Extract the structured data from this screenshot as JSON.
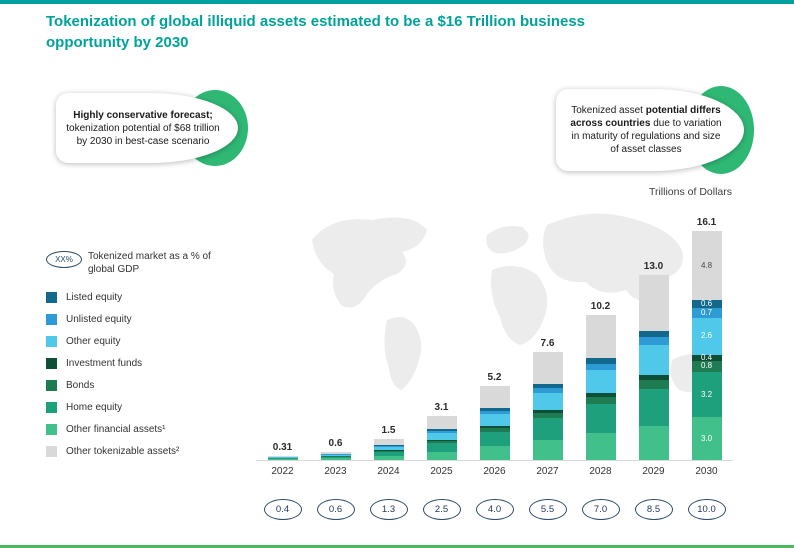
{
  "header": {
    "title": "Tokenization of global illiquid assets estimated to be a $16 Trillion business opportunity by 2030"
  },
  "callouts": {
    "left_bold": "Highly conservative forecast;",
    "left_rest": " tokenization potential of $68 trillion by 2030 in best-case scenario",
    "right_pre": "Tokenized asset ",
    "right_bold": "potential differs across countries",
    "right_post": " due to variation in maturity of regulations and size of asset classes"
  },
  "chart_data": {
    "type": "bar",
    "stacked": true,
    "title": "Trillions of Dollars",
    "categories": [
      "2022",
      "2023",
      "2024",
      "2025",
      "2026",
      "2027",
      "2028",
      "2029",
      "2030"
    ],
    "totals": [
      0.31,
      0.6,
      1.5,
      3.1,
      5.2,
      7.6,
      10.2,
      13.0,
      16.1
    ],
    "totals_labels": [
      "0.31",
      "0.6",
      "1.5",
      "3.1",
      "5.2",
      "7.6",
      "10.2",
      "13.0",
      "16.1"
    ],
    "gdp_badge": "XX%",
    "gdp_note": "Tokenized market as a % of global GDP",
    "gdp_percent_labels": [
      "0.4",
      "0.6",
      "1.3",
      "2.5",
      "4.0",
      "5.5",
      "7.0",
      "8.5",
      "10.0"
    ],
    "legend": [
      {
        "label": "Listed equity",
        "color": "#13698B"
      },
      {
        "label": "Unlisted equity",
        "color": "#2E9BD6"
      },
      {
        "label": "Other equity",
        "color": "#4FC8EA"
      },
      {
        "label": "Investment funds",
        "color": "#0E4F38"
      },
      {
        "label": "Bonds",
        "color": "#1E7B52"
      },
      {
        "label": "Home equity",
        "color": "#1FA07C"
      },
      {
        "label": "Other financial assets¹",
        "color": "#41C08B"
      },
      {
        "label": "Other tokenizable assets²",
        "color": "#D9D9D9"
      }
    ],
    "series": [
      {
        "key": "other-financial-assets",
        "name": "Other financial assets¹",
        "color": "#41C08B",
        "label_color": "#ffffff",
        "values": [
          0.06,
          0.11,
          0.28,
          0.58,
          0.97,
          1.42,
          1.9,
          2.42,
          3.0
        ]
      },
      {
        "key": "home-equity",
        "name": "Home equity",
        "color": "#1FA07C",
        "label_color": "#ffffff",
        "values": [
          0.06,
          0.12,
          0.3,
          0.62,
          1.03,
          1.51,
          2.03,
          2.58,
          3.2
        ]
      },
      {
        "key": "bonds",
        "name": "Bonds",
        "color": "#1E7B52",
        "label_color": "#ffffff",
        "values": [
          0.02,
          0.03,
          0.07,
          0.15,
          0.26,
          0.38,
          0.51,
          0.65,
          0.8
        ]
      },
      {
        "key": "investment-funds",
        "name": "Investment funds",
        "color": "#0E4F38",
        "label_color": "#ffffff",
        "values": [
          0.01,
          0.01,
          0.04,
          0.08,
          0.13,
          0.19,
          0.25,
          0.32,
          0.4
        ]
      },
      {
        "key": "other-equity",
        "name": "Other equity",
        "color": "#4FC8EA",
        "label_color": "#ffffff",
        "values": [
          0.05,
          0.1,
          0.24,
          0.5,
          0.84,
          1.23,
          1.65,
          2.1,
          2.6
        ]
      },
      {
        "key": "unlisted-equity",
        "name": "Unlisted equity",
        "color": "#2E9BD6",
        "label_color": "#ffffff",
        "values": [
          0.01,
          0.03,
          0.07,
          0.13,
          0.23,
          0.33,
          0.44,
          0.57,
          0.7
        ]
      },
      {
        "key": "listed-equity",
        "name": "Listed equity",
        "color": "#13698B",
        "label_color": "#ffffff",
        "values": [
          0.01,
          0.02,
          0.06,
          0.12,
          0.19,
          0.28,
          0.38,
          0.48,
          0.6
        ]
      },
      {
        "key": "other-tokenizable-assets",
        "name": "Other tokenizable assets²",
        "color": "#D9D9D9",
        "label_color": "#4a4a4a",
        "values": [
          0.09,
          0.18,
          0.44,
          0.92,
          1.55,
          2.26,
          3.04,
          3.88,
          4.8
        ]
      }
    ],
    "labeled_year_index": 8,
    "ylim": [
      0,
      16.5
    ],
    "legend_position": "left"
  },
  "colors": {
    "accent_teal": "#00A0A0",
    "bottom_green": "#4CB860",
    "callout_green": "#2FB874",
    "oval_border": "#2A4A6B"
  }
}
